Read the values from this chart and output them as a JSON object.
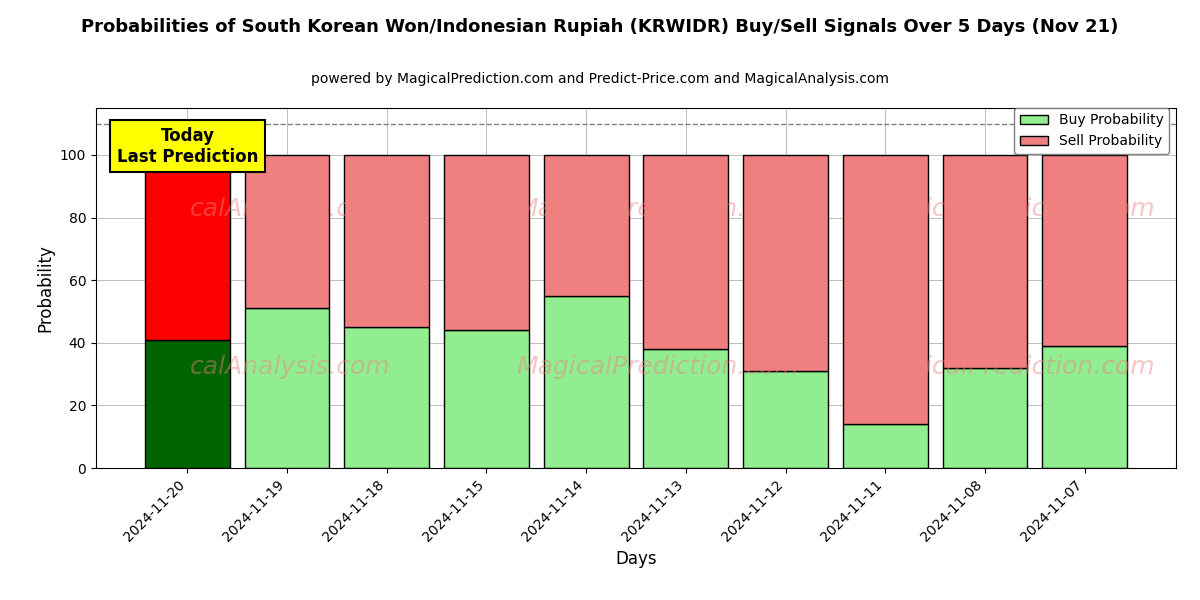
{
  "title": "Probabilities of South Korean Won/Indonesian Rupiah (KRWIDR) Buy/Sell Signals Over 5 Days (Nov 21)",
  "subtitle": "powered by MagicalPrediction.com and Predict-Price.com and MagicalAnalysis.com",
  "xlabel": "Days",
  "ylabel": "Probability",
  "dates": [
    "2024-11-20",
    "2024-11-19",
    "2024-11-18",
    "2024-11-15",
    "2024-11-14",
    "2024-11-13",
    "2024-11-12",
    "2024-11-11",
    "2024-11-08",
    "2024-11-07"
  ],
  "buy_values": [
    41,
    51,
    45,
    44,
    55,
    38,
    31,
    14,
    32,
    39
  ],
  "sell_values": [
    59,
    49,
    55,
    56,
    45,
    62,
    69,
    86,
    68,
    61
  ],
  "today_buy_color": "#006400",
  "today_sell_color": "#ff0000",
  "other_buy_color": "#90EE90",
  "other_sell_color": "#F08080",
  "today_annotation": "Today\nLast Prediction",
  "annotation_bg": "#ffff00",
  "dashed_line_y": 110,
  "ylim": [
    0,
    115
  ],
  "yticks": [
    0,
    20,
    40,
    60,
    80,
    100
  ],
  "watermark_color": "#F08080",
  "watermark_alpha": 0.45,
  "bar_edgecolor": "#000000",
  "bar_linewidth": 1.0,
  "figsize": [
    12.0,
    6.0
  ],
  "dpi": 100
}
